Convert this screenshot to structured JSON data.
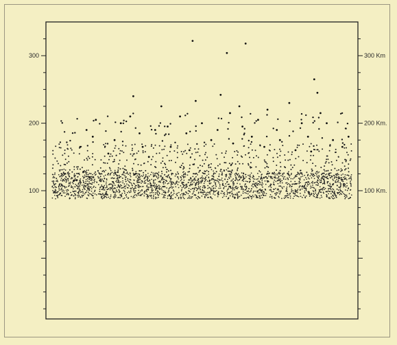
{
  "chart_data": {
    "type": "scatter",
    "title": "",
    "xlabel": "",
    "ylabel": "",
    "ylim": [
      -90,
      350
    ],
    "grid": false,
    "left_axis": {
      "ticks": [
        300,
        200,
        100
      ],
      "labels": [
        "300",
        "200",
        "100"
      ]
    },
    "right_axis": {
      "ticks": [
        300,
        200,
        100
      ],
      "labels": [
        "300 Km",
        "200 Km.",
        "100 Km."
      ]
    },
    "series": [
      {
        "description_of_distribution": "dense band of points between ~85 and ~125, thinning upward to ~200, sparse outliers up to ~320",
        "points": [
          [
            0.12,
            128
          ],
          [
            0.14,
            120
          ],
          [
            0.09,
            115
          ],
          [
            0.11,
            165
          ],
          [
            0.13,
            190
          ],
          [
            0.16,
            205
          ],
          [
            0.15,
            180
          ],
          [
            0.2,
            155
          ],
          [
            0.22,
            175
          ],
          [
            0.24,
            200
          ],
          [
            0.27,
            210
          ],
          [
            0.28,
            240
          ],
          [
            0.3,
            185
          ],
          [
            0.31,
            165
          ],
          [
            0.33,
            150
          ],
          [
            0.35,
            190
          ],
          [
            0.37,
            225
          ],
          [
            0.39,
            195
          ],
          [
            0.4,
            165
          ],
          [
            0.43,
            210
          ],
          [
            0.45,
            185
          ],
          [
            0.46,
            160
          ],
          [
            0.48,
            233
          ],
          [
            0.5,
            200
          ],
          [
            0.47,
            322
          ],
          [
            0.53,
            175
          ],
          [
            0.55,
            190
          ],
          [
            0.56,
            242
          ],
          [
            0.58,
            304
          ],
          [
            0.59,
            215
          ],
          [
            0.6,
            170
          ],
          [
            0.62,
            225
          ],
          [
            0.63,
            195
          ],
          [
            0.64,
            318
          ],
          [
            0.66,
            180
          ],
          [
            0.68,
            205
          ],
          [
            0.7,
            165
          ],
          [
            0.71,
            220
          ],
          [
            0.74,
            190
          ],
          [
            0.75,
            175
          ],
          [
            0.78,
            230
          ],
          [
            0.8,
            160
          ],
          [
            0.82,
            200
          ],
          [
            0.84,
            180
          ],
          [
            0.86,
            265
          ],
          [
            0.87,
            245
          ],
          [
            0.88,
            215
          ],
          [
            0.9,
            200
          ],
          [
            0.92,
            175
          ],
          [
            0.95,
            165
          ],
          [
            0.97,
            180
          ],
          [
            0.85,
            158
          ]
        ]
      }
    ]
  }
}
